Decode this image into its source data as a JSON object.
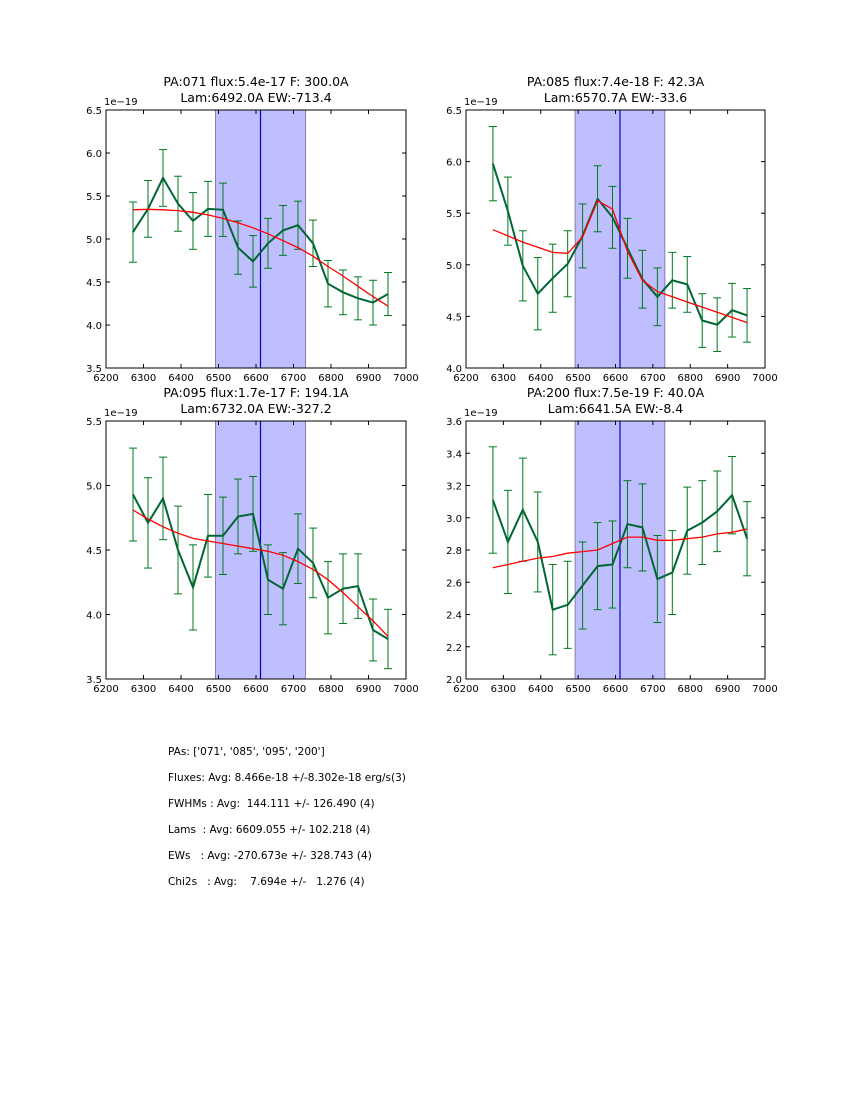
{
  "chart_data": [
    {
      "type": "line",
      "title": [
        "PA:071 flux:5.4e-17 F: 300.0A",
        "Lam:6492.0A EW:-713.4"
      ],
      "offset_label": "1e−19",
      "xlim": [
        6200,
        7000
      ],
      "ylim": [
        3.5,
        6.5
      ],
      "xticks": [
        "6200",
        "6300",
        "6400",
        "6500",
        "6600",
        "6700",
        "6800",
        "6900",
        "7000"
      ],
      "yticks": [
        "3.5",
        "4.0",
        "4.5",
        "5.0",
        "5.5",
        "6.0",
        "6.5"
      ],
      "band": [
        6492,
        6732
      ],
      "center_line": 6612,
      "x": [
        6272,
        6312,
        6352,
        6392,
        6432,
        6472,
        6512,
        6552,
        6592,
        6632,
        6672,
        6712,
        6752,
        6792,
        6832,
        6872,
        6912,
        6952
      ],
      "series": [
        {
          "name": "data",
          "color": "#006633",
          "values": [
            5.08,
            5.35,
            5.71,
            5.41,
            5.21,
            5.35,
            5.34,
            4.9,
            4.74,
            4.95,
            5.1,
            5.16,
            4.95,
            4.48,
            4.38,
            4.31,
            4.26,
            4.36
          ],
          "errors": [
            0.35,
            0.33,
            0.33,
            0.32,
            0.33,
            0.32,
            0.31,
            0.31,
            0.3,
            0.29,
            0.29,
            0.28,
            0.27,
            0.27,
            0.26,
            0.25,
            0.26,
            0.25
          ]
        },
        {
          "name": "fit",
          "color": "#ff0000",
          "values": [
            5.34,
            5.345,
            5.34,
            5.33,
            5.31,
            5.28,
            5.24,
            5.19,
            5.13,
            5.06,
            4.98,
            4.9,
            4.8,
            4.68,
            4.57,
            4.45,
            4.33,
            4.22
          ]
        }
      ]
    },
    {
      "type": "line",
      "title": [
        "PA:085 flux:7.4e-18 F: 42.3A",
        "Lam:6570.7A EW:-33.6"
      ],
      "offset_label": "1e−19",
      "xlim": [
        6200,
        7000
      ],
      "ylim": [
        4.0,
        6.5
      ],
      "xticks": [
        "6200",
        "6300",
        "6400",
        "6500",
        "6600",
        "6700",
        "6800",
        "6900",
        "7000"
      ],
      "yticks": [
        "4.0",
        "4.5",
        "5.0",
        "5.5",
        "6.0",
        "6.5"
      ],
      "band": [
        6492,
        6732
      ],
      "center_line": 6612,
      "x": [
        6272,
        6312,
        6352,
        6392,
        6432,
        6472,
        6512,
        6552,
        6592,
        6632,
        6672,
        6712,
        6752,
        6792,
        6832,
        6872,
        6912,
        6952
      ],
      "series": [
        {
          "name": "data",
          "color": "#006633",
          "values": [
            5.98,
            5.52,
            4.99,
            4.72,
            4.87,
            5.01,
            5.28,
            5.64,
            5.46,
            5.16,
            4.86,
            4.69,
            4.85,
            4.81,
            4.46,
            4.42,
            4.56,
            4.51
          ],
          "errors": [
            0.36,
            0.33,
            0.34,
            0.35,
            0.33,
            0.32,
            0.31,
            0.32,
            0.3,
            0.29,
            0.28,
            0.28,
            0.27,
            0.27,
            0.26,
            0.26,
            0.26,
            0.26
          ]
        },
        {
          "name": "fit",
          "color": "#ff0000",
          "values": [
            5.34,
            5.28,
            5.22,
            5.17,
            5.12,
            5.11,
            5.27,
            5.62,
            5.54,
            5.13,
            4.85,
            4.74,
            4.69,
            4.64,
            4.59,
            4.54,
            4.49,
            4.44
          ]
        }
      ]
    },
    {
      "type": "line",
      "title": [
        "PA:095 flux:1.7e-17 F: 194.1A",
        "Lam:6732.0A EW:-327.2"
      ],
      "offset_label": "1e−19",
      "xlim": [
        6200,
        7000
      ],
      "ylim": [
        3.5,
        5.5
      ],
      "xticks": [
        "6200",
        "6300",
        "6400",
        "6500",
        "6600",
        "6700",
        "6800",
        "6900",
        "7000"
      ],
      "yticks": [
        "3.5",
        "4.0",
        "4.5",
        "5.0",
        "5.5"
      ],
      "band": [
        6492,
        6732
      ],
      "center_line": 6612,
      "x": [
        6272,
        6312,
        6352,
        6392,
        6432,
        6472,
        6512,
        6552,
        6592,
        6632,
        6672,
        6712,
        6752,
        6792,
        6832,
        6872,
        6912,
        6952
      ],
      "series": [
        {
          "name": "data",
          "color": "#006633",
          "values": [
            4.93,
            4.71,
            4.9,
            4.5,
            4.21,
            4.61,
            4.61,
            4.76,
            4.78,
            4.27,
            4.2,
            4.51,
            4.4,
            4.13,
            4.2,
            4.22,
            3.88,
            3.81
          ],
          "errors": [
            0.36,
            0.35,
            0.32,
            0.34,
            0.33,
            0.32,
            0.3,
            0.29,
            0.29,
            0.27,
            0.28,
            0.27,
            0.27,
            0.28,
            0.27,
            0.25,
            0.24,
            0.23
          ]
        },
        {
          "name": "fit",
          "color": "#ff0000",
          "values": [
            4.81,
            4.74,
            4.68,
            4.63,
            4.59,
            4.57,
            4.55,
            4.53,
            4.51,
            4.49,
            4.46,
            4.41,
            4.35,
            4.27,
            4.17,
            4.06,
            3.95,
            3.83
          ]
        }
      ]
    },
    {
      "type": "line",
      "title": [
        "PA:200 flux:7.5e-19 F: 40.0A",
        "Lam:6641.5A EW:-8.4"
      ],
      "offset_label": "1e−19",
      "xlim": [
        6200,
        7000
      ],
      "ylim": [
        2.0,
        3.6
      ],
      "xticks": [
        "6200",
        "6300",
        "6400",
        "6500",
        "6600",
        "6700",
        "6800",
        "6900",
        "7000"
      ],
      "yticks": [
        "2.0",
        "2.2",
        "2.4",
        "2.6",
        "2.8",
        "3.0",
        "3.2",
        "3.4",
        "3.6"
      ],
      "band": [
        6492,
        6732
      ],
      "center_line": 6612,
      "x": [
        6272,
        6312,
        6352,
        6392,
        6432,
        6472,
        6512,
        6552,
        6592,
        6632,
        6672,
        6712,
        6752,
        6792,
        6832,
        6872,
        6912,
        6952
      ],
      "series": [
        {
          "name": "data",
          "color": "#006633",
          "values": [
            3.11,
            2.85,
            3.05,
            2.85,
            2.43,
            2.46,
            2.58,
            2.7,
            2.71,
            2.96,
            2.94,
            2.62,
            2.66,
            2.92,
            2.97,
            3.04,
            3.14,
            2.87
          ],
          "errors": [
            0.33,
            0.32,
            0.32,
            0.31,
            0.28,
            0.27,
            0.27,
            0.27,
            0.27,
            0.27,
            0.27,
            0.27,
            0.26,
            0.27,
            0.26,
            0.25,
            0.24,
            0.23
          ]
        },
        {
          "name": "fit",
          "color": "#ff0000",
          "values": [
            2.69,
            2.71,
            2.73,
            2.75,
            2.76,
            2.78,
            2.79,
            2.8,
            2.84,
            2.88,
            2.88,
            2.86,
            2.86,
            2.87,
            2.88,
            2.9,
            2.91,
            2.93
          ]
        }
      ]
    }
  ],
  "summary": [
    "PAs: ['071', '085', '095', '200']",
    "Fluxes: Avg: 8.466e-18 +/-8.302e-18 erg/s(3)",
    "FWHMs : Avg:  144.111 +/- 126.490 (4)",
    "Lams  : Avg: 6609.055 +/- 102.218 (4)",
    "EWs   : Avg: -270.673e +/- 328.743 (4)",
    "Chi2s   : Avg:    7.694e +/-   1.276 (4)"
  ],
  "colors": {
    "band": "#bfbfff",
    "band_edge": "#8080a8",
    "center": "#0000cc",
    "data": "#006633",
    "errbar": "#007a1f",
    "fit": "#ff0000"
  }
}
